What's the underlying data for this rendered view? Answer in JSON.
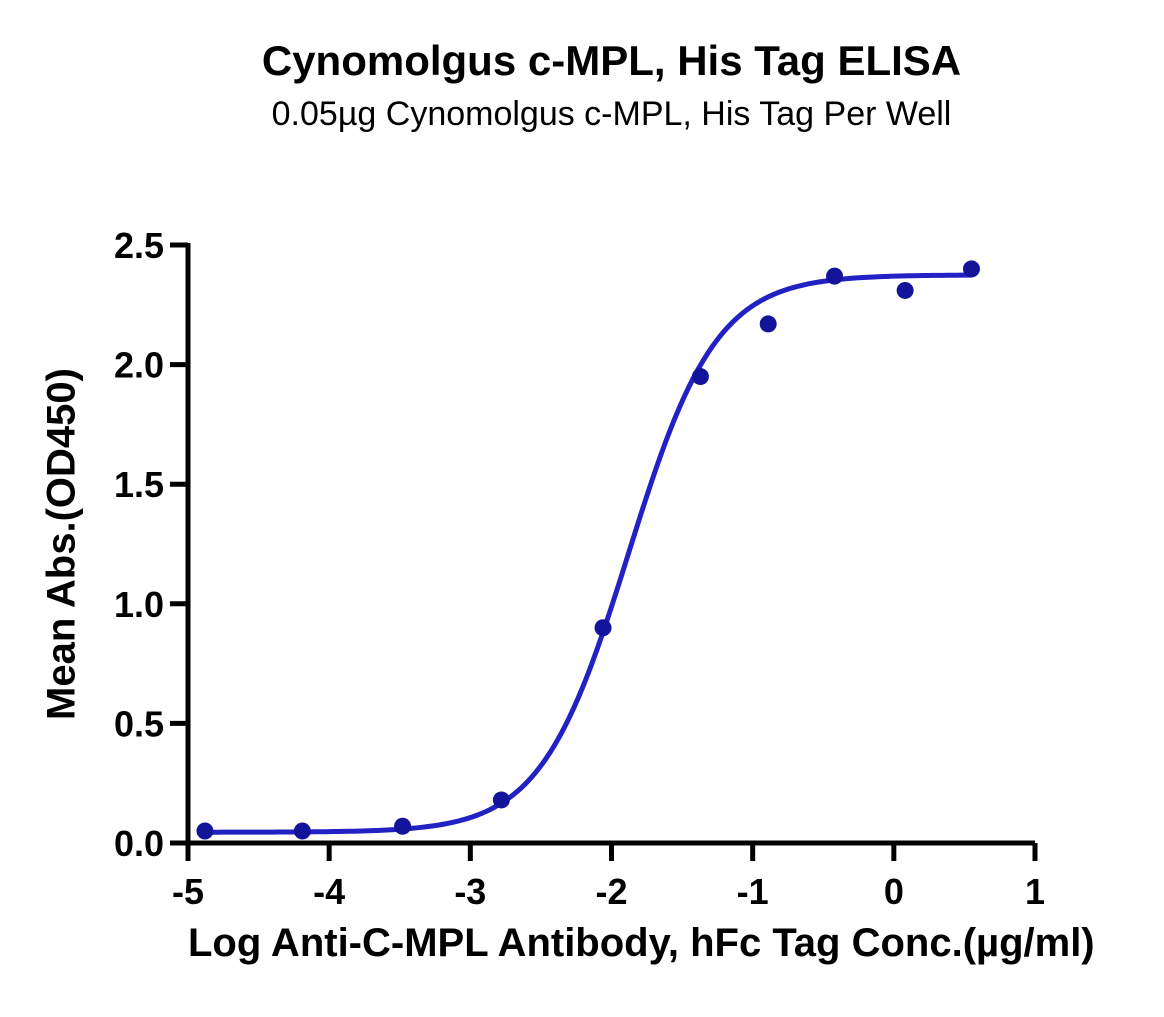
{
  "chart_data": {
    "type": "scatter",
    "title": "Cynomolgus c-MPL, His Tag ELISA",
    "subtitle": "0.05µg Cynomolgus c-MPL, His Tag Per Well",
    "xlabel": "Log Anti-C-MPL Antibody, hFc Tag Conc.(µg/ml)",
    "ylabel": "Mean Abs.(OD450)",
    "x": [
      -4.88,
      -4.19,
      -3.48,
      -2.78,
      -2.06,
      -1.37,
      -0.89,
      -0.42,
      0.08,
      0.55
    ],
    "y": [
      0.05,
      0.05,
      0.07,
      0.18,
      0.9,
      1.95,
      2.17,
      2.37,
      2.31,
      2.4
    ],
    "fit_curve": {
      "model": "4PL",
      "bottom": 0.045,
      "top": 2.375,
      "log_ec50": -1.88,
      "hill": 1.4,
      "x_start": -4.88,
      "x_end": 0.55
    },
    "x_ticks": [
      -5,
      -4,
      -3,
      -2,
      -1,
      0,
      1
    ],
    "y_ticks": [
      0.0,
      0.5,
      1.0,
      1.5,
      2.0,
      2.5
    ],
    "xlim": [
      -5,
      1
    ],
    "ylim": [
      0,
      2.5
    ],
    "grid": false,
    "legend": "none",
    "colors": {
      "line": "#2121c4",
      "marker": "#14149b",
      "axis": "#000000",
      "text": "#000000",
      "background": "#ffffff"
    }
  }
}
